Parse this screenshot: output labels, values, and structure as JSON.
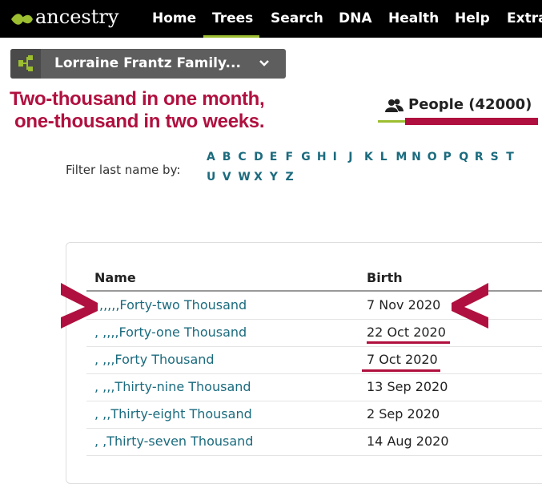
{
  "nav": {
    "logo": "ancestry",
    "items": [
      "Home",
      "Trees",
      "Search",
      "DNA",
      "Health",
      "Help",
      "Extra"
    ]
  },
  "tree_button": "Lorraine Frantz Family...",
  "annotation": {
    "line1": "Two-thousand in one month,",
    "line2": "one-thousand in two weeks."
  },
  "tab": "People (42000)",
  "filter": {
    "label": "Filter last name by:",
    "letters": [
      "A",
      "B",
      "C",
      "D",
      "E",
      "F",
      "G",
      "H",
      "I",
      "J",
      "K",
      "L",
      "M",
      "N",
      "O",
      "P",
      "Q",
      "R",
      "S",
      "T",
      "U",
      "V",
      "W",
      "X",
      "Y",
      "Z"
    ]
  },
  "table": {
    "headers": [
      "Name",
      "Birth"
    ],
    "rows": [
      [
        ",,,,,Forty-two Thousand",
        "7 Nov 2020"
      ],
      [
        ", ,,,,Forty-one Thousand",
        "22 Oct 2020"
      ],
      [
        ", ,,,Forty Thousand",
        "7 Oct 2020"
      ],
      [
        ", ,,,Thirty-nine Thousand",
        "13 Sep 2020"
      ],
      [
        ", ,,Thirty-eight Thousand",
        "2 Sep 2020"
      ],
      [
        ", ,Thirty-seven Thousand",
        "14 Aug 2020"
      ]
    ]
  }
}
